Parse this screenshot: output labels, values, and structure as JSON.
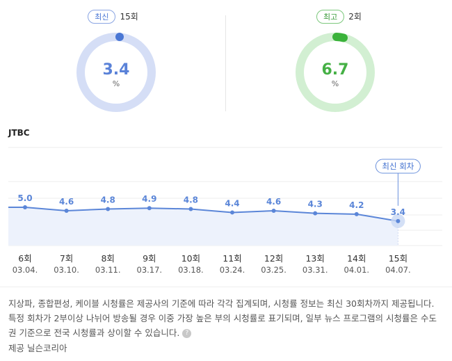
{
  "latest": {
    "badge": "최신",
    "episode": "15회",
    "value": "3.4",
    "unit": "%",
    "ring_color": "#d5def6",
    "marker_color": "#4a77d4",
    "text_color": "#5a82d8"
  },
  "highest": {
    "badge": "최고",
    "episode": "2회",
    "value": "6.7",
    "unit": "%",
    "ring_color": "#d2efd2",
    "marker_color": "#3ab23a",
    "text_color": "#45b045"
  },
  "network": "JTBC",
  "chart_data": {
    "type": "area",
    "categories": [
      "6회",
      "7회",
      "8회",
      "9회",
      "10회",
      "11회",
      "12회",
      "13회",
      "14회",
      "15회"
    ],
    "dates": [
      "03.04.",
      "03.10.",
      "03.11.",
      "03.17.",
      "03.18.",
      "03.24.",
      "03.25.",
      "03.31.",
      "04.01.",
      "04.07."
    ],
    "values": [
      5.0,
      4.6,
      4.8,
      4.9,
      4.8,
      4.4,
      4.6,
      4.3,
      4.2,
      3.4
    ],
    "value_labels": [
      "5.0",
      "4.6",
      "4.8",
      "4.9",
      "4.8",
      "4.4",
      "4.6",
      "4.3",
      "4.2",
      "3.4"
    ],
    "tooltip": "최신 회차",
    "line_color": "#5b86d8",
    "fill_color": "#edf2fc",
    "grid": true
  },
  "note": {
    "text": "지상파, 종합편성, 케이블 시청률은 제공사의 기준에 따라 각각 집계되며, 시청률 정보는 최신 30회차까지 제공됩니다. 특정 회차가 2부이상 나뉘어 방송될 경우 이중 가장 높은 부의 시청률로 표기되며, 일부 뉴스 프로그램의 시청률은 수도권 기준으로 전국 시청률과 상이할 수 있습니다.",
    "help_icon": "?"
  },
  "provider": "제공 닐슨코리아"
}
